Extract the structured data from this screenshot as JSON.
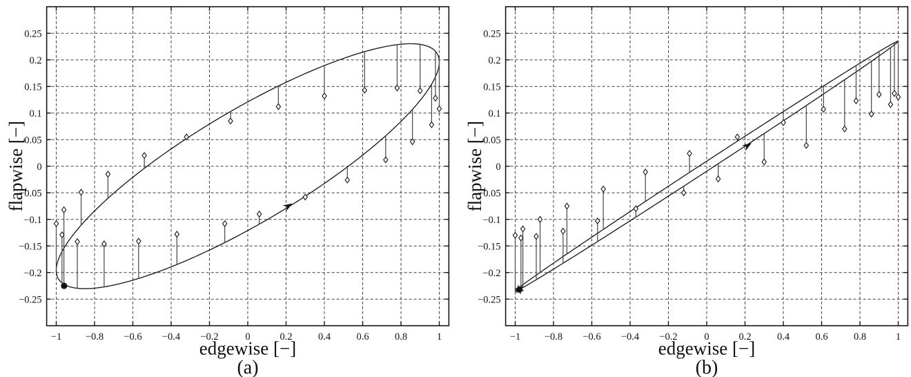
{
  "figure": {
    "background": "#ffffff",
    "line_color": "#141414",
    "grid_color": "#3f3f3f",
    "stem_color": "#4a4a4a",
    "marker_fill": "#ffffff"
  },
  "chart_data": [
    {
      "type": "line",
      "panel_label": "(a)",
      "xlabel": "edgewise [−]",
      "ylabel": "flapwise [−]",
      "xlim": [
        -1.05,
        1.05
      ],
      "ylim": [
        -0.3,
        0.3
      ],
      "grid": "dashed",
      "legend": "none",
      "xticks": [
        -1,
        -0.8,
        -0.6,
        -0.4,
        -0.2,
        0,
        0.2,
        0.4,
        0.6,
        0.8,
        1
      ],
      "xtick_labels": [
        "−1",
        "−0.8",
        "−0.6",
        "−0.4",
        "−0.2",
        "0",
        "0.2",
        "0.4",
        "0.6",
        "0.8",
        "1"
      ],
      "yticks": [
        -0.25,
        -0.2,
        -0.15,
        -0.1,
        -0.05,
        0,
        0.05,
        0.1,
        0.15,
        0.2,
        0.25
      ],
      "ytick_labels": [
        "−0.25",
        "−0.2",
        "−0.15",
        "−0.1",
        "−0.05",
        "0",
        "0.05",
        "0.1",
        "0.15",
        "0.2",
        "0.25"
      ],
      "loop": {
        "x": "cos(t)",
        "y_cos_amp": 0.196,
        "y_sin_amp": 0.121
      },
      "points": [
        [
          -1.0,
          -0.108,
          -0.196
        ],
        [
          -0.97,
          -0.129,
          -0.22
        ],
        [
          -0.96,
          -0.082,
          -0.222
        ],
        [
          -0.89,
          -0.142,
          -0.23
        ],
        [
          -0.87,
          -0.049,
          -0.111
        ],
        [
          -0.75,
          -0.146,
          -0.227
        ],
        [
          -0.73,
          -0.015,
          -0.06
        ],
        [
          -0.57,
          -0.141,
          -0.211
        ],
        [
          -0.54,
          0.02,
          -0.004
        ],
        [
          -0.37,
          -0.128,
          -0.185
        ],
        [
          -0.32,
          0.055,
          0.052
        ],
        [
          -0.12,
          -0.108,
          -0.144
        ],
        [
          -0.09,
          0.085,
          0.103
        ],
        [
          0.06,
          -0.09,
          -0.109
        ],
        [
          0.16,
          0.112,
          0.151
        ],
        [
          0.3,
          -0.058,
          -0.057
        ],
        [
          0.4,
          0.132,
          0.189
        ],
        [
          0.52,
          -0.026,
          -0.001
        ],
        [
          0.61,
          0.143,
          0.215
        ],
        [
          0.72,
          0.012,
          0.057
        ],
        [
          0.78,
          0.147,
          0.229
        ],
        [
          0.86,
          0.046,
          0.107
        ],
        [
          0.9,
          0.142,
          0.229
        ],
        [
          0.96,
          0.078,
          0.154
        ],
        [
          0.98,
          0.128,
          0.216
        ],
        [
          1.0,
          0.108,
          0.2
        ]
      ],
      "start_marker": {
        "x": -0.959,
        "y": -0.225,
        "style": "dot"
      },
      "arrow": {
        "x": 0.233,
        "y": -0.07,
        "angle_deg": -31.6
      }
    },
    {
      "type": "line",
      "panel_label": "(b)",
      "xlabel": "edgewise [−]",
      "ylabel": "flapwise [−]",
      "xlim": [
        -1.05,
        1.05
      ],
      "ylim": [
        -0.3,
        0.3
      ],
      "grid": "dashed",
      "legend": "none",
      "xticks": [
        -1,
        -0.8,
        -0.6,
        -0.4,
        -0.2,
        0,
        0.2,
        0.4,
        0.6,
        0.8,
        1
      ],
      "xtick_labels": [
        "−1",
        "−0.8",
        "−0.6",
        "−0.4",
        "−0.2",
        "0",
        "0.2",
        "0.4",
        "0.6",
        "0.8",
        "1"
      ],
      "yticks": [
        -0.25,
        -0.2,
        -0.15,
        -0.1,
        -0.05,
        0,
        0.05,
        0.1,
        0.15,
        0.2,
        0.25
      ],
      "ytick_labels": [
        "−0.25",
        "−0.2",
        "−0.15",
        "−0.1",
        "−0.05",
        "0",
        "0.05",
        "0.1",
        "0.15",
        "0.2",
        "0.25"
      ],
      "loop": {
        "x": "cos(t)",
        "y_cos_amp": 0.235,
        "y_sin_amp": 0.0095
      },
      "points": [
        [
          -1.0,
          -0.13,
          -0.235
        ],
        [
          -0.97,
          -0.135,
          -0.23
        ],
        [
          -0.96,
          -0.118,
          -0.228
        ],
        [
          -0.89,
          -0.132,
          -0.214
        ],
        [
          -0.87,
          -0.1,
          -0.2
        ],
        [
          -0.75,
          -0.122,
          -0.183
        ],
        [
          -0.73,
          -0.075,
          -0.165
        ],
        [
          -0.57,
          -0.103,
          -0.142
        ],
        [
          -0.54,
          -0.043,
          -0.119
        ],
        [
          -0.37,
          -0.08,
          -0.096
        ],
        [
          -0.32,
          -0.011,
          -0.066
        ],
        [
          -0.12,
          -0.05,
          -0.038
        ],
        [
          -0.09,
          0.024,
          -0.012
        ],
        [
          0.06,
          -0.024,
          0.005
        ],
        [
          0.16,
          0.055,
          0.047
        ],
        [
          0.3,
          0.008,
          0.061
        ],
        [
          0.4,
          0.082,
          0.103
        ],
        [
          0.52,
          0.039,
          0.114
        ],
        [
          0.61,
          0.107,
          0.151
        ],
        [
          0.72,
          0.07,
          0.163
        ],
        [
          0.78,
          0.123,
          0.189
        ],
        [
          0.86,
          0.098,
          0.197
        ],
        [
          0.9,
          0.135,
          0.216
        ],
        [
          0.96,
          0.116,
          0.223
        ],
        [
          0.98,
          0.137,
          0.232
        ],
        [
          1.0,
          0.13,
          0.235
        ]
      ],
      "start_marker": {
        "x": -0.978,
        "y": -0.232,
        "style": "dot-asterisk"
      },
      "arrow": {
        "x": 0.234,
        "y": 0.0435,
        "angle_deg": -33.0
      }
    }
  ]
}
